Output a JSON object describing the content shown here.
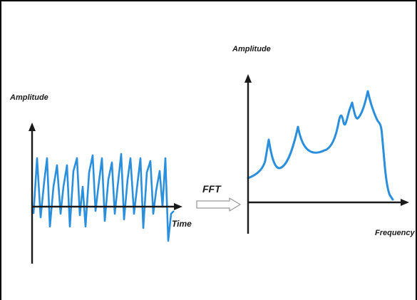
{
  "diagram": {
    "time_domain": {
      "y_label": "Amplitude",
      "x_label": "Time"
    },
    "transform": {
      "label": "FFT"
    },
    "frequency_domain": {
      "y_label": "Amplitude",
      "x_label": "Frequency"
    },
    "colors": {
      "signal": "#2b8fdc",
      "axis": "#1a1a1a",
      "arrow": "#9a9a9a",
      "border": "#000000"
    }
  }
}
